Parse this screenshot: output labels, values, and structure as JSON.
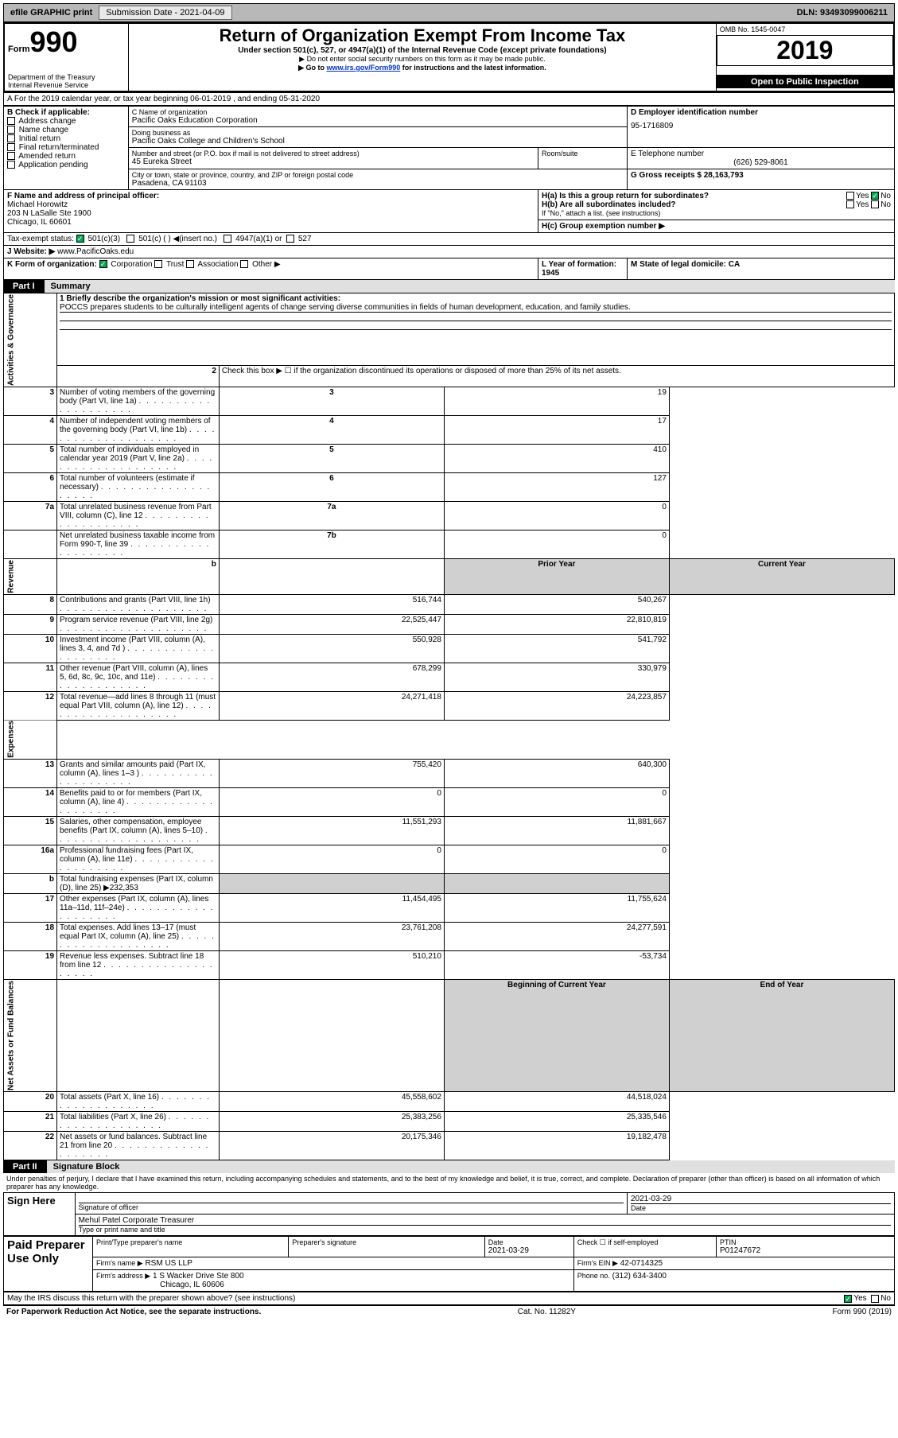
{
  "topbar": {
    "efile": "efile GRAPHIC print",
    "submission_label": "Submission Date - 2021-04-09",
    "dln": "DLN: 93493099006211"
  },
  "header": {
    "form_prefix": "Form",
    "form_number": "990",
    "dept1": "Department of the Treasury",
    "dept2": "Internal Revenue Service",
    "title": "Return of Organization Exempt From Income Tax",
    "subtitle": "Under section 501(c), 527, or 4947(a)(1) of the Internal Revenue Code (except private foundations)",
    "note1": "▶ Do not enter social security numbers on this form as it may be made public.",
    "note2_pre": "▶ Go to ",
    "note2_link": "www.irs.gov/Form990",
    "note2_post": " for instructions and the latest information.",
    "omb": "OMB No. 1545-0047",
    "year": "2019",
    "inspect": "Open to Public Inspection"
  },
  "sectionA": {
    "lineA": "A For the 2019 calendar year, or tax year beginning 06-01-2019   , and ending 05-31-2020",
    "B_label": "B Check if applicable:",
    "B_items": [
      "Address change",
      "Name change",
      "Initial return",
      "Final return/terminated",
      "Amended return",
      "Application pending"
    ],
    "C_label": "C Name of organization",
    "C_name": "Pacific Oaks Education Corporation",
    "dba_label": "Doing business as",
    "dba": "Pacific Oaks College and Children's School",
    "addr_label": "Number and street (or P.O. box if mail is not delivered to street address)",
    "addr": "45 Eureka Street",
    "room_label": "Room/suite",
    "city_label": "City or town, state or province, country, and ZIP or foreign postal code",
    "city": "Pasadena, CA  91103",
    "D_label": "D Employer identification number",
    "D_val": "95-1716809",
    "E_label": "E Telephone number",
    "E_val": "(626) 529-8061",
    "G_label": "G Gross receipts $ 28,163,793",
    "F_label": "F  Name and address of principal officer:",
    "F_name": "Michael Horowitz",
    "F_addr1": "203 N LaSalle Ste 1900",
    "F_addr2": "Chicago, IL  60601",
    "Ha_label": "H(a)  Is this a group return for subordinates?",
    "Ha_yes": "Yes",
    "Ha_no": "No",
    "Hb_label": "H(b)  Are all subordinates included?",
    "Hb_note": "If \"No,\" attach a list. (see instructions)",
    "Hc_label": "H(c)  Group exemption number ▶",
    "tax_label": "Tax-exempt status:",
    "tax_501c3": "501(c)(3)",
    "tax_501c": "501(c) (  ) ◀(insert no.)",
    "tax_4947": "4947(a)(1) or",
    "tax_527": "527",
    "J_label": "J   Website: ▶",
    "J_val": "www.PacificOaks.edu",
    "K_label": "K Form of organization:",
    "K_items": [
      "Corporation",
      "Trust",
      "Association",
      "Other ▶"
    ],
    "L_label": "L Year of formation: 1945",
    "M_label": "M State of legal domicile: CA"
  },
  "part1": {
    "label": "Part I",
    "name": "Summary",
    "side_ag": "Activities & Governance",
    "side_rev": "Revenue",
    "side_exp": "Expenses",
    "side_net": "Net Assets or Fund Balances",
    "line1_label": "1  Briefly describe the organization's mission or most significant activities:",
    "line1_text": "POCCS prepares students to be culturally intelligent agents of change serving diverse communities in fields of human development, education, and family studies.",
    "line2": "Check this box ▶ ☐ if the organization discontinued its operations or disposed of more than 25% of its net assets.",
    "rows_ag": [
      {
        "n": "2",
        "hidden": true
      },
      {
        "n": "3",
        "txt": "Number of voting members of the governing body (Part VI, line 1a)",
        "box": "3",
        "val": "19"
      },
      {
        "n": "4",
        "txt": "Number of independent voting members of the governing body (Part VI, line 1b)",
        "box": "4",
        "val": "17"
      },
      {
        "n": "5",
        "txt": "Total number of individuals employed in calendar year 2019 (Part V, line 2a)",
        "box": "5",
        "val": "410"
      },
      {
        "n": "6",
        "txt": "Total number of volunteers (estimate if necessary)",
        "box": "6",
        "val": "127"
      },
      {
        "n": "7a",
        "txt": "Total unrelated business revenue from Part VIII, column (C), line 12",
        "box": "7a",
        "val": "0"
      },
      {
        "n": "",
        "txt": "Net unrelated business taxable income from Form 990-T, line 39",
        "box": "7b",
        "val": "0"
      }
    ],
    "hdr_prior": "Prior Year",
    "hdr_curr": "Current Year",
    "rows_rev": [
      {
        "n": "8",
        "txt": "Contributions and grants (Part VIII, line 1h)",
        "p": "516,744",
        "c": "540,267"
      },
      {
        "n": "9",
        "txt": "Program service revenue (Part VIII, line 2g)",
        "p": "22,525,447",
        "c": "22,810,819"
      },
      {
        "n": "10",
        "txt": "Investment income (Part VIII, column (A), lines 3, 4, and 7d )",
        "p": "550,928",
        "c": "541,792"
      },
      {
        "n": "11",
        "txt": "Other revenue (Part VIII, column (A), lines 5, 6d, 8c, 9c, 10c, and 11e)",
        "p": "678,299",
        "c": "330,979"
      },
      {
        "n": "12",
        "txt": "Total revenue—add lines 8 through 11 (must equal Part VIII, column (A), line 12)",
        "p": "24,271,418",
        "c": "24,223,857"
      }
    ],
    "rows_exp": [
      {
        "n": "13",
        "txt": "Grants and similar amounts paid (Part IX, column (A), lines 1–3 )",
        "p": "755,420",
        "c": "640,300"
      },
      {
        "n": "14",
        "txt": "Benefits paid to or for members (Part IX, column (A), line 4)",
        "p": "0",
        "c": "0"
      },
      {
        "n": "15",
        "txt": "Salaries, other compensation, employee benefits (Part IX, column (A), lines 5–10)",
        "p": "11,551,293",
        "c": "11,881,667"
      },
      {
        "n": "16a",
        "txt": "Professional fundraising fees (Part IX, column (A), line 11e)",
        "p": "0",
        "c": "0"
      },
      {
        "n": "b",
        "txt": "Total fundraising expenses (Part IX, column (D), line 25) ▶232,353",
        "p": "",
        "c": "",
        "shade": true
      },
      {
        "n": "17",
        "txt": "Other expenses (Part IX, column (A), lines 11a–11d, 11f–24e)",
        "p": "11,454,495",
        "c": "11,755,624"
      },
      {
        "n": "18",
        "txt": "Total expenses. Add lines 13–17 (must equal Part IX, column (A), line 25)",
        "p": "23,761,208",
        "c": "24,277,591"
      },
      {
        "n": "19",
        "txt": "Revenue less expenses. Subtract line 18 from line 12",
        "p": "510,210",
        "c": "-53,734"
      }
    ],
    "hdr_beg": "Beginning of Current Year",
    "hdr_end": "End of Year",
    "rows_net": [
      {
        "n": "20",
        "txt": "Total assets (Part X, line 16)",
        "p": "45,558,602",
        "c": "44,518,024"
      },
      {
        "n": "21",
        "txt": "Total liabilities (Part X, line 26)",
        "p": "25,383,256",
        "c": "25,335,546"
      },
      {
        "n": "22",
        "txt": "Net assets or fund balances. Subtract line 21 from line 20",
        "p": "20,175,346",
        "c": "19,182,478"
      }
    ]
  },
  "part2": {
    "label": "Part II",
    "name": "Signature Block",
    "penalty": "Under penalties of perjury, I declare that I have examined this return, including accompanying schedules and statements, and to the best of my knowledge and belief, it is true, correct, and complete. Declaration of preparer (other than officer) is based on all information of which preparer has any knowledge.",
    "sign_here": "Sign Here",
    "sig_officer": "Signature of officer",
    "sig_date_label": "Date",
    "sig_date": "2021-03-29",
    "sig_name": "Mehul Patel  Corporate Treasurer",
    "sig_type": "Type or print name and title",
    "paid": "Paid Preparer Use Only",
    "p_name_label": "Print/Type preparer's name",
    "p_sig_label": "Preparer's signature",
    "p_date_label": "Date",
    "p_date": "2021-03-29",
    "p_check_label": "Check ☐ if self-employed",
    "p_ptin_label": "PTIN",
    "p_ptin": "P01247672",
    "p_firm_label": "Firm's name   ▶",
    "p_firm": "RSM US LLP",
    "p_ein_label": "Firm's EIN ▶",
    "p_ein": "42-0714325",
    "p_addr_label": "Firm's address ▶",
    "p_addr1": "1 S Wacker Drive Ste 800",
    "p_addr2": "Chicago, IL  60606",
    "p_phone_label": "Phone no.",
    "p_phone": "(312) 634-3400",
    "discuss": "May the IRS discuss this return with the preparer shown above? (see instructions)",
    "discuss_yes": "Yes",
    "discuss_no": "No"
  },
  "footer": {
    "left": "For Paperwork Reduction Act Notice, see the separate instructions.",
    "mid": "Cat. No. 11282Y",
    "right": "Form 990 (2019)"
  }
}
